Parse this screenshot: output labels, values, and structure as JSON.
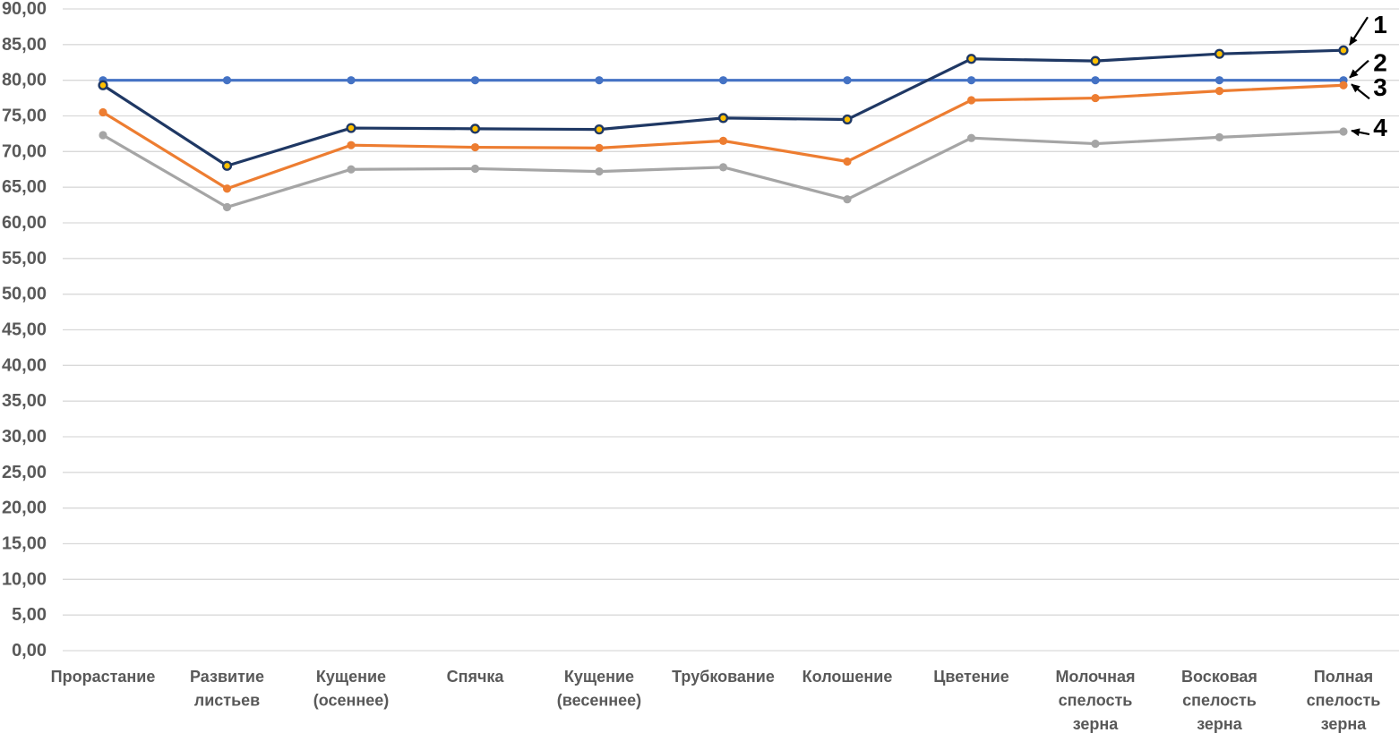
{
  "chart_data": {
    "type": "line",
    "title": "",
    "categories": [
      "Прорастание",
      "Развитие\nлистьев",
      "Кущение\n(осеннее)",
      "Спячка",
      "Кущение\n(весеннее)",
      "Трубкование",
      "Колошение",
      "Цветение",
      "Молочная\nспелость\nзерна",
      "Восковая\nспелость\nзерна",
      "Полная\nспелость\nзерна"
    ],
    "series": [
      {
        "name": "1",
        "color": "#1f3864",
        "marker": "circle-gold-center",
        "marker_fill": "#ffc000",
        "values": [
          79.3,
          68.0,
          73.3,
          73.2,
          73.1,
          74.7,
          74.5,
          83.0,
          82.7,
          83.7,
          84.2
        ]
      },
      {
        "name": "2",
        "color": "#4472c4",
        "marker": "circle",
        "marker_fill": "#4472c4",
        "values": [
          80,
          80,
          80,
          80,
          80,
          80,
          80,
          80,
          80,
          80,
          80
        ]
      },
      {
        "name": "3",
        "color": "#ed7d31",
        "marker": "circle",
        "marker_fill": "#ed7d31",
        "values": [
          75.5,
          64.8,
          70.9,
          70.6,
          70.5,
          71.5,
          68.6,
          77.2,
          77.5,
          78.5,
          79.3
        ]
      },
      {
        "name": "4",
        "color": "#a5a5a5",
        "marker": "circle",
        "marker_fill": "#a5a5a5",
        "values": [
          72.3,
          62.2,
          67.5,
          67.6,
          67.2,
          67.8,
          63.3,
          71.9,
          71.1,
          72.0,
          72.8
        ]
      }
    ],
    "y_axis": {
      "min": 0,
      "max": 90,
      "step": 5,
      "tick_labels": [
        "0,00",
        "5,00",
        "10,00",
        "15,00",
        "20,00",
        "25,00",
        "30,00",
        "35,00",
        "40,00",
        "45,00",
        "50,00",
        "55,00",
        "60,00",
        "65,00",
        "70,00",
        "75,00",
        "80,00",
        "85,00",
        "90,00"
      ]
    },
    "xlabel": "",
    "ylabel": "",
    "grid": true,
    "legend_position": "none",
    "annotations": [
      {
        "text": "1",
        "series": 0
      },
      {
        "text": "2",
        "series": 1
      },
      {
        "text": "3",
        "series": 2
      },
      {
        "text": "4",
        "series": 3
      }
    ],
    "colors": {
      "gridline": "#d9d9d9",
      "axis_text": "#595959",
      "annotation_text": "#000000",
      "background": "#ffffff"
    }
  }
}
